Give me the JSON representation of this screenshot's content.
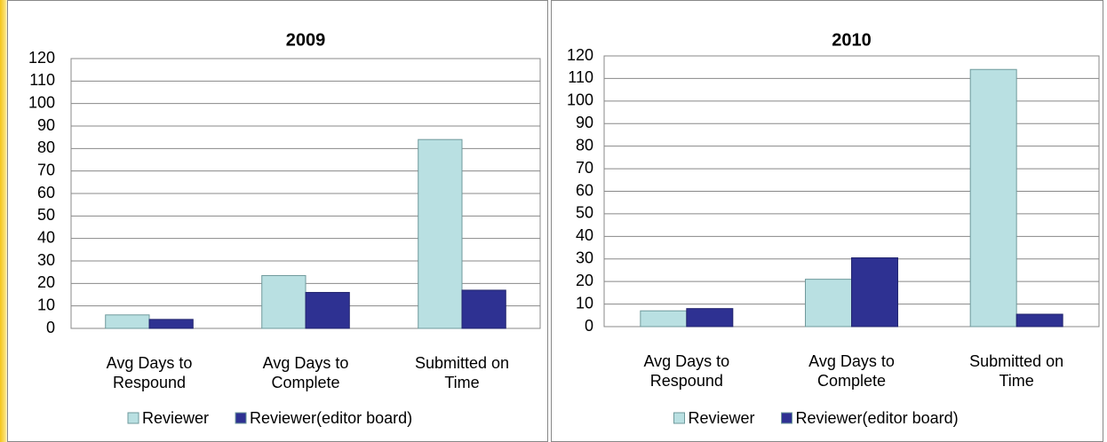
{
  "chart_data": [
    {
      "type": "bar",
      "title": "2009",
      "categories": [
        "Avg Days to Respound",
        "Avg Days to Complete",
        "Submitted on Time"
      ],
      "series": [
        {
          "name": "Reviewer",
          "color": "#b9e0e2",
          "values": [
            6,
            23.5,
            84
          ]
        },
        {
          "name": "Reviewer(editor board)",
          "color": "#2e3192",
          "values": [
            4,
            16,
            17
          ]
        }
      ],
      "ylim": [
        0,
        120
      ],
      "yticks": [
        0,
        10,
        20,
        30,
        40,
        50,
        60,
        70,
        80,
        90,
        100,
        110,
        120
      ],
      "grid": true,
      "legend": "bottom"
    },
    {
      "type": "bar",
      "title": "2010",
      "categories": [
        "Avg Days to Respound",
        "Avg Days to Complete",
        "Submitted on Time"
      ],
      "series": [
        {
          "name": "Reviewer",
          "color": "#b9e0e2",
          "values": [
            7,
            21,
            114
          ]
        },
        {
          "name": "Reviewer(editor board)",
          "color": "#2e3192",
          "values": [
            8,
            30.5,
            5.5
          ]
        }
      ],
      "ylim": [
        0,
        120
      ],
      "yticks": [
        0,
        10,
        20,
        30,
        40,
        50,
        60,
        70,
        80,
        90,
        100,
        110,
        120
      ],
      "grid": true,
      "legend": "bottom"
    }
  ]
}
